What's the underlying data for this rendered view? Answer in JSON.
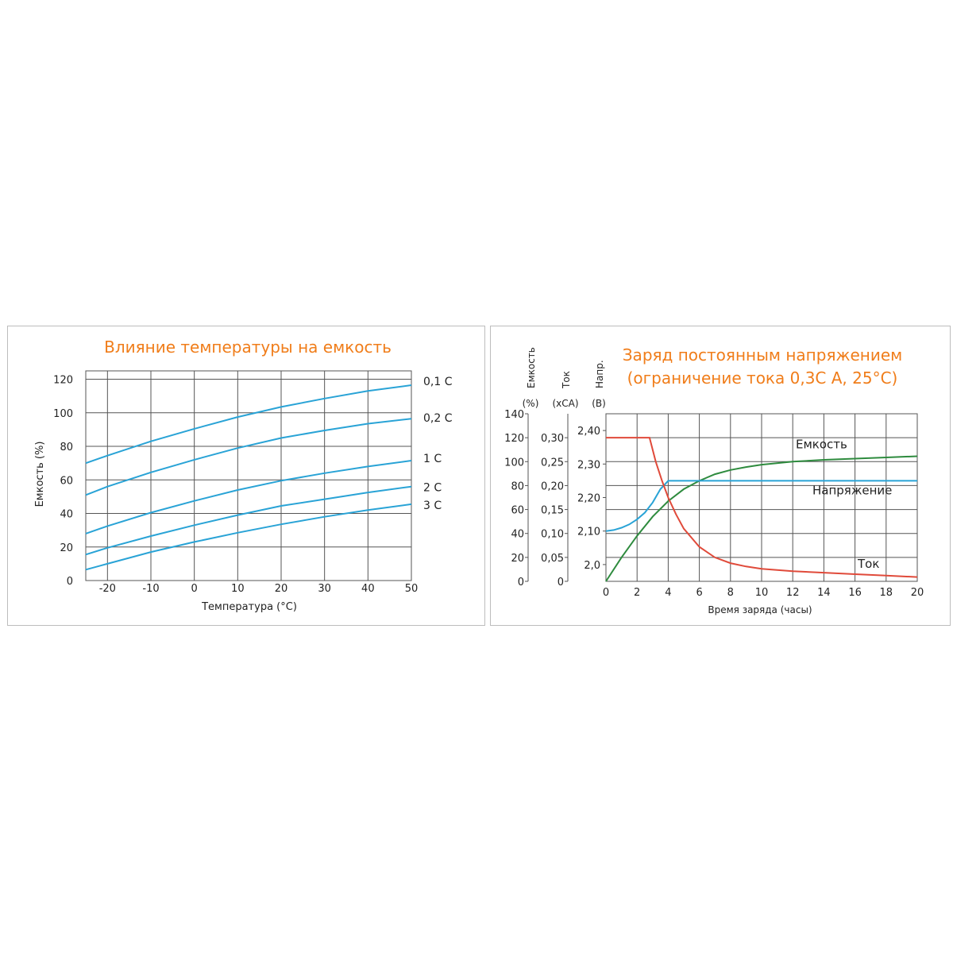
{
  "chart_data": [
    {
      "type": "line",
      "title": "Влияние температуры на емкость",
      "xlabel": "Температура (°C)",
      "ylabel": "Емкость (%)",
      "xlim": [
        -25,
        50
      ],
      "ylim": [
        0,
        125
      ],
      "x_ticks": [
        "-20",
        "-10",
        "0",
        "10",
        "20",
        "30",
        "40",
        "50"
      ],
      "y_ticks": [
        "0",
        "20",
        "40",
        "60",
        "80",
        "100",
        "120"
      ],
      "grid": true,
      "series": [
        {
          "name": "0,1 C",
          "color": "#29a3d6",
          "x": [
            -25,
            -20,
            -10,
            0,
            10,
            20,
            30,
            40,
            50
          ],
          "y": [
            70,
            74.5,
            83,
            90.5,
            97.5,
            103.5,
            108.5,
            113,
            116.5
          ]
        },
        {
          "name": "0,2 C",
          "color": "#29a3d6",
          "x": [
            -25,
            -20,
            -10,
            0,
            10,
            20,
            30,
            40,
            50
          ],
          "y": [
            51,
            56,
            64.5,
            72,
            79,
            85,
            89.5,
            93.5,
            96.5
          ]
        },
        {
          "name": "1 C",
          "color": "#29a3d6",
          "x": [
            -25,
            -20,
            -10,
            0,
            10,
            20,
            30,
            40,
            50
          ],
          "y": [
            28,
            32.5,
            40.5,
            47.5,
            54,
            59.5,
            64,
            68,
            71.5
          ]
        },
        {
          "name": "2 C",
          "color": "#29a3d6",
          "x": [
            -25,
            -20,
            -10,
            0,
            10,
            20,
            30,
            40,
            50
          ],
          "y": [
            15.5,
            19.5,
            26.5,
            33,
            39,
            44.5,
            48.5,
            52.5,
            56
          ]
        },
        {
          "name": "3 C",
          "color": "#29a3d6",
          "x": [
            -25,
            -20,
            -10,
            0,
            10,
            20,
            30,
            40,
            50
          ],
          "y": [
            6.5,
            10,
            17,
            23,
            28.5,
            33.5,
            38,
            42,
            45.5
          ]
        }
      ]
    },
    {
      "type": "line",
      "title": "Заряд постоянным напряжением",
      "subtitle": "(ограничение тока 0,3С А, 25°С)",
      "xlabel": "Время заряда (часы)",
      "xlim": [
        0,
        20
      ],
      "x_ticks": [
        "0",
        "2",
        "4",
        "6",
        "8",
        "10",
        "12",
        "14",
        "16",
        "18",
        "20"
      ],
      "grid": true,
      "axes": [
        {
          "label": "Емкость",
          "unit": "(%)",
          "range": [
            0,
            140
          ],
          "ticks": [
            "0",
            "20",
            "40",
            "60",
            "80",
            "100",
            "120",
            "140"
          ]
        },
        {
          "label": "Ток",
          "unit": "(хСА)",
          "range": [
            0,
            0.35
          ],
          "ticks": [
            "0",
            "0,05",
            "0,10",
            "0,15",
            "0,20",
            "0,25",
            "0,30"
          ]
        },
        {
          "label": "Напр.",
          "unit": "(В)",
          "range": [
            1.95,
            2.45
          ],
          "ticks": [
            "2,0",
            "2,10",
            "2,20",
            "2,30",
            "2,40"
          ]
        }
      ],
      "series": [
        {
          "name": "Емкость",
          "axis": "Емкость",
          "color": "#2e8b3e",
          "x": [
            0,
            1,
            2,
            3,
            4,
            5,
            6,
            7,
            8,
            9,
            10,
            12,
            14,
            16,
            18,
            20
          ],
          "y": [
            0,
            20,
            38,
            54,
            67,
            77,
            84,
            89.5,
            93,
            95.5,
            97.5,
            100,
            101.5,
            102.5,
            103.5,
            104.5
          ]
        },
        {
          "name": "Напряжение",
          "axis": "Напр.",
          "color": "#29a3d6",
          "x": [
            0,
            0.5,
            1,
            1.5,
            2,
            2.5,
            3,
            3.5,
            4,
            6,
            8,
            10,
            12,
            14,
            16,
            18,
            20
          ],
          "y": [
            2.1,
            2.103,
            2.11,
            2.12,
            2.135,
            2.155,
            2.185,
            2.225,
            2.25,
            2.25,
            2.25,
            2.25,
            2.25,
            2.25,
            2.25,
            2.25,
            2.25
          ]
        },
        {
          "name": "Ток",
          "axis": "Ток",
          "color": "#e04a3a",
          "x": [
            0,
            2.8,
            3.2,
            3.6,
            4,
            4.5,
            5,
            6,
            7,
            8,
            9,
            10,
            12,
            14,
            16,
            18,
            20
          ],
          "y": [
            0.3,
            0.3,
            0.25,
            0.21,
            0.175,
            0.14,
            0.11,
            0.072,
            0.05,
            0.038,
            0.031,
            0.026,
            0.021,
            0.018,
            0.015,
            0.012,
            0.009
          ]
        }
      ]
    }
  ]
}
